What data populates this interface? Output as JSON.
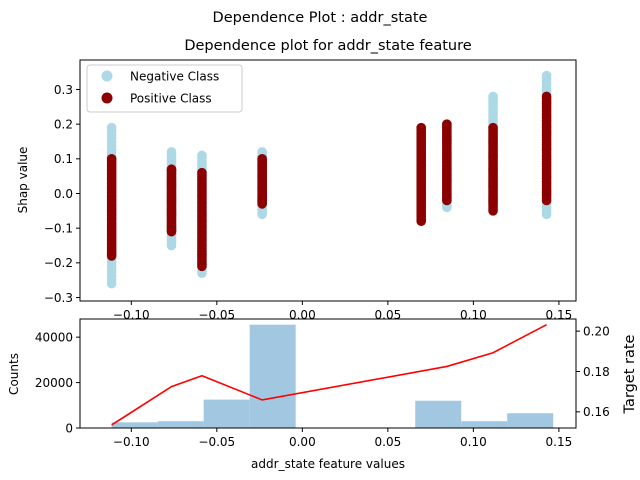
{
  "suptitle": "Dependence Plot : addr_state",
  "chart_data": [
    {
      "type": "scatter",
      "title": "Dependence plot for addr_state feature",
      "xlabel": "",
      "ylabel": "Shap value",
      "xlim": [
        -0.13,
        0.16
      ],
      "ylim": [
        -0.31,
        0.385
      ],
      "xticks": [
        "−0.10",
        "−0.05",
        "0.00",
        "0.05",
        "0.10",
        "0.15"
      ],
      "xtick_values": [
        -0.1,
        -0.05,
        0.0,
        0.05,
        0.1,
        0.15
      ],
      "yticks": [
        "−0.3",
        "−0.2",
        "−0.1",
        "0.0",
        "0.1",
        "0.2",
        "0.3"
      ],
      "ytick_values": [
        -0.3,
        -0.2,
        -0.1,
        0.0,
        0.1,
        0.2,
        0.3
      ],
      "legend_position": "top-left",
      "series": [
        {
          "name": "Negative Class",
          "color": "#add8e6",
          "groups": [
            {
              "x": -0.1115,
              "ymin": -0.26,
              "ymax": 0.19
            },
            {
              "x": -0.0765,
              "ymin": -0.15,
              "ymax": 0.12
            },
            {
              "x": -0.0587,
              "ymin": -0.23,
              "ymax": 0.11
            },
            {
              "x": -0.0235,
              "ymin": -0.06,
              "ymax": 0.12
            },
            {
              "x": 0.0695,
              "ymin": -0.01,
              "ymax": 0.17
            },
            {
              "x": 0.0845,
              "ymin": -0.04,
              "ymax": 0.2
            },
            {
              "x": 0.1115,
              "ymin": -0.02,
              "ymax": 0.28
            },
            {
              "x": 0.1428,
              "ymin": -0.06,
              "ymax": 0.34
            }
          ]
        },
        {
          "name": "Positive Class",
          "color": "#8b0000",
          "groups": [
            {
              "x": -0.1115,
              "ymin": -0.18,
              "ymax": 0.1
            },
            {
              "x": -0.0765,
              "ymin": -0.11,
              "ymax": 0.07
            },
            {
              "x": -0.0587,
              "ymin": -0.21,
              "ymax": 0.06
            },
            {
              "x": -0.0235,
              "ymin": -0.03,
              "ymax": 0.1
            },
            {
              "x": 0.0695,
              "ymin": -0.08,
              "ymax": 0.19
            },
            {
              "x": 0.0845,
              "ymin": -0.02,
              "ymax": 0.2
            },
            {
              "x": 0.1115,
              "ymin": -0.05,
              "ymax": 0.19
            },
            {
              "x": 0.1428,
              "ymin": -0.02,
              "ymax": 0.28
            }
          ]
        }
      ]
    },
    {
      "type": "bar",
      "title": "",
      "xlabel": "addr_state feature values",
      "ylabel": "Counts",
      "y2label": "Target rate",
      "xlim": [
        -0.13,
        0.16
      ],
      "ylim": [
        0,
        48000
      ],
      "y2lim": [
        0.152,
        0.206
      ],
      "xticks": [
        "−0.10",
        "−0.05",
        "0.00",
        "0.05",
        "0.10",
        "0.15"
      ],
      "xtick_values": [
        -0.1,
        -0.05,
        0.0,
        0.05,
        0.1,
        0.15
      ],
      "yticks": [
        "0",
        "20000",
        "40000"
      ],
      "ytick_values": [
        0,
        20000,
        40000
      ],
      "y2ticks": [
        "0.16",
        "0.18",
        "0.20"
      ],
      "y2tick_values": [
        0.16,
        0.18,
        0.2
      ],
      "bar_color": "#a2c8e1",
      "line_color": "#ff0000",
      "y2label_color": "#ff0000",
      "bins": [
        {
          "x0": -0.1115,
          "x1": -0.0846,
          "count": 2500
        },
        {
          "x0": -0.0846,
          "x1": -0.0577,
          "count": 3000
        },
        {
          "x0": -0.0577,
          "x1": -0.0308,
          "count": 12500
        },
        {
          "x0": -0.0308,
          "x1": -0.0039,
          "count": 45500
        },
        {
          "x0": 0.066,
          "x1": 0.0929,
          "count": 12000
        },
        {
          "x0": 0.0929,
          "x1": 0.1198,
          "count": 3000
        },
        {
          "x0": 0.1198,
          "x1": 0.1467,
          "count": 6500
        }
      ],
      "target_rate": {
        "x": [
          -0.1115,
          -0.0765,
          -0.0587,
          -0.0235,
          0.0845,
          0.1115,
          0.1428
        ],
        "y": [
          0.1535,
          0.1725,
          0.1779,
          0.1659,
          0.1825,
          0.1893,
          0.2032
        ]
      }
    }
  ]
}
